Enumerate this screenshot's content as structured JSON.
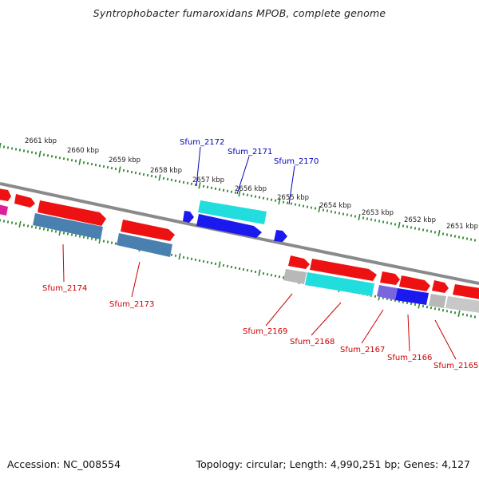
{
  "title": "Syntrophobacter fumaroxidans MPOB, complete genome",
  "footer": {
    "accession": "Accession: NC_008554",
    "summary": "Topology: circular; Length: 4,990,251 bp; Genes: 4,127"
  },
  "colors": {
    "backbone": "#8a8a8a",
    "ticks": "#2e8b2e",
    "forward_label": "#0000bb",
    "reverse_label": "#cc0000",
    "red": "#ee1111",
    "blue": "#1a1aee",
    "cyan": "#22dddd",
    "steel": "#4a80b0",
    "gray": "#b8b8b8",
    "violet": "#7766dd",
    "magenta": "#dd2299"
  },
  "kbp_labels": [
    "2661 kbp",
    "2660 kbp",
    "2659 kbp",
    "2658 kbp",
    "2657 kbp",
    "2656 kbp",
    "2655 kbp",
    "2654 kbp",
    "2653 kbp",
    "2652 kbp",
    "2651 kbp"
  ],
  "forward_labels": [
    "Sfum_2172",
    "Sfum_2171",
    "Sfum_2170"
  ],
  "reverse_labels": [
    "Sfum_2174",
    "Sfum_2173",
    "Sfum_2169",
    "Sfum_2168",
    "Sfum_2167",
    "Sfum_2166",
    "Sfum_2165"
  ]
}
